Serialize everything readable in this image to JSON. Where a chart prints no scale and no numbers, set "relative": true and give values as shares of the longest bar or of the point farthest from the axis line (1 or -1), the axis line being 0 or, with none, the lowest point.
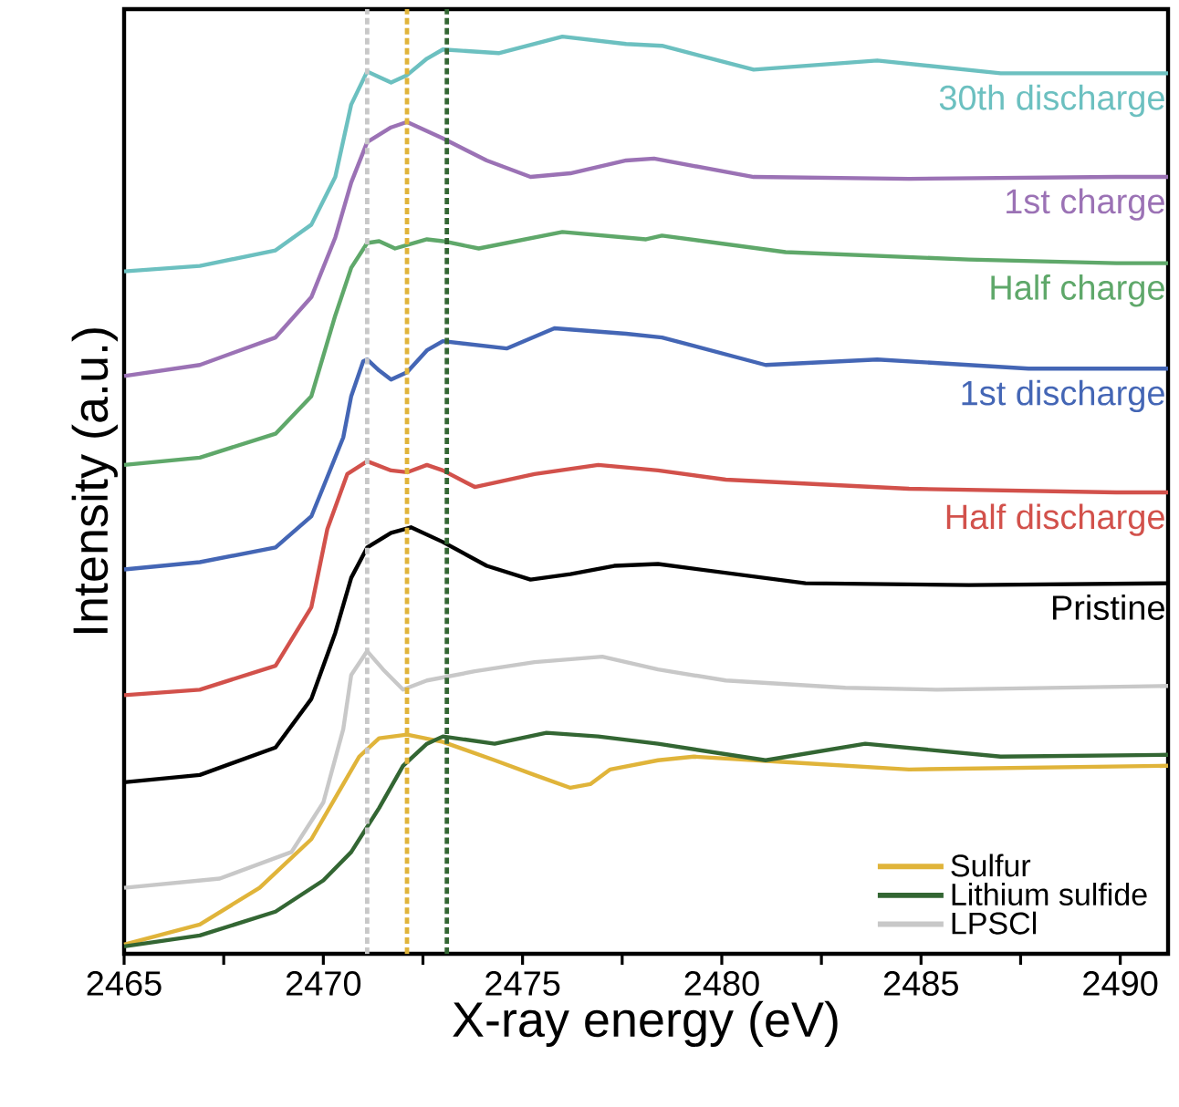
{
  "chart_data": {
    "type": "line",
    "relative": true,
    "xlabel": "X-ray energy (eV)",
    "ylabel": "Intensity (a.u.)",
    "xlim": [
      2465,
      2491.2
    ],
    "xticks": [
      2465,
      {
        "value": 2467.5,
        "label": null
      },
      2470,
      {
        "value": 2472.5,
        "label": null
      },
      2475,
      {
        "value": 2477.5,
        "label": null
      },
      2480,
      {
        "value": 2482.5,
        "label": null
      },
      2485,
      {
        "value": 2487.5,
        "label": null
      },
      2490
    ],
    "legend": "bottom right",
    "marker": "none",
    "line_style": "solid",
    "series": [
      {
        "color": "#6cc0c0",
        "x": [
          2465,
          2466.9,
          2468.8,
          2469.7,
          2470.3,
          2470.7,
          2471.1,
          2471.4,
          2471.7,
          2472.1,
          2472.6,
          2473.0,
          2474.4,
          2476.0,
          2477.6,
          2478.5,
          2480.8,
          2483.9,
          2487.0,
          2489.9,
          2491.2
        ],
        "values": [
          0.744,
          0.75,
          0.767,
          0.795,
          0.847,
          0.926,
          0.962,
          0.956,
          0.95,
          0.958,
          0.976,
          0.986,
          0.982,
          1.0,
          0.992,
          0.99,
          0.964,
          0.974,
          0.96,
          0.96,
          0.96
        ]
      },
      {
        "color": "#9b72b5",
        "x": [
          2465,
          2466.9,
          2468.8,
          2469.7,
          2470.3,
          2470.7,
          2471.1,
          2471.7,
          2472.1,
          2473.0,
          2474.1,
          2475.2,
          2476.2,
          2477.6,
          2478.3,
          2480.8,
          2484.7,
          2489.9,
          2491.2
        ],
        "values": [
          0.63,
          0.642,
          0.672,
          0.716,
          0.781,
          0.841,
          0.885,
          0.901,
          0.907,
          0.889,
          0.865,
          0.847,
          0.851,
          0.865,
          0.867,
          0.847,
          0.845,
          0.847,
          0.847
        ]
      },
      {
        "color": "#5fa86a",
        "x": [
          2465,
          2466.9,
          2468.8,
          2469.7,
          2470.3,
          2470.7,
          2471.1,
          2471.4,
          2471.8,
          2472.6,
          2473.0,
          2473.9,
          2476.0,
          2478.1,
          2478.5,
          2481.6,
          2486.2,
          2489.9,
          2491.2
        ],
        "values": [
          0.533,
          0.541,
          0.567,
          0.608,
          0.696,
          0.748,
          0.775,
          0.777,
          0.769,
          0.779,
          0.777,
          0.769,
          0.787,
          0.779,
          0.783,
          0.765,
          0.757,
          0.753,
          0.753
        ]
      },
      {
        "color": "#4466b5",
        "x": [
          2465,
          2466.9,
          2468.8,
          2469.7,
          2470.0,
          2470.5,
          2470.7,
          2471.0,
          2471.1,
          2471.4,
          2471.7,
          2472.1,
          2472.6,
          2473.0,
          2474.6,
          2475.8,
          2477.6,
          2478.5,
          2481.1,
          2483.9,
          2487.7,
          2491.2
        ],
        "values": [
          0.419,
          0.427,
          0.443,
          0.477,
          0.509,
          0.563,
          0.608,
          0.646,
          0.648,
          0.636,
          0.626,
          0.634,
          0.658,
          0.668,
          0.66,
          0.682,
          0.676,
          0.672,
          0.642,
          0.648,
          0.638,
          0.638
        ]
      },
      {
        "color": "#d2514b",
        "x": [
          2465,
          2466.9,
          2468.8,
          2469.7,
          2470.1,
          2470.6,
          2471.1,
          2471.7,
          2472.1,
          2472.6,
          2473.0,
          2473.8,
          2475.3,
          2476.9,
          2478.4,
          2480.1,
          2484.7,
          2489.9,
          2491.2
        ],
        "values": [
          0.282,
          0.288,
          0.314,
          0.378,
          0.463,
          0.523,
          0.537,
          0.527,
          0.525,
          0.533,
          0.527,
          0.509,
          0.523,
          0.533,
          0.527,
          0.517,
          0.507,
          0.503,
          0.503
        ]
      },
      {
        "color": "#000000",
        "x": [
          2465,
          2466.9,
          2468.8,
          2469.7,
          2470.3,
          2470.7,
          2471.1,
          2471.7,
          2472.2,
          2473.0,
          2474.1,
          2475.2,
          2476.2,
          2477.3,
          2478.4,
          2482.1,
          2486.2,
          2491.2
        ],
        "values": [
          0.187,
          0.195,
          0.225,
          0.278,
          0.35,
          0.41,
          0.443,
          0.459,
          0.465,
          0.449,
          0.423,
          0.408,
          0.414,
          0.423,
          0.425,
          0.404,
          0.402,
          0.404
        ]
      },
      {
        "name": "Sulfur",
        "color": "#e0b43a",
        "x": [
          2465,
          2466.9,
          2468.4,
          2469.7,
          2470.5,
          2470.9,
          2471.4,
          2472.1,
          2473.0,
          2474.3,
          2475.3,
          2476.2,
          2476.7,
          2477.2,
          2478.4,
          2479.3,
          2481.6,
          2484.7,
          2491.2
        ],
        "values": [
          0.01,
          0.032,
          0.072,
          0.125,
          0.185,
          0.215,
          0.235,
          0.239,
          0.231,
          0.211,
          0.195,
          0.181,
          0.185,
          0.201,
          0.211,
          0.215,
          0.209,
          0.201,
          0.205
        ]
      },
      {
        "name": "Lithium sulfide",
        "color": "#336633",
        "x": [
          2465,
          2466.9,
          2468.8,
          2470.0,
          2470.7,
          2471.4,
          2472.0,
          2472.6,
          2473.0,
          2474.3,
          2475.6,
          2476.9,
          2478.4,
          2481.1,
          2483.6,
          2487.0,
          2491.2
        ],
        "values": [
          0.008,
          0.02,
          0.046,
          0.08,
          0.111,
          0.159,
          0.205,
          0.229,
          0.237,
          0.229,
          0.241,
          0.237,
          0.229,
          0.211,
          0.229,
          0.215,
          0.217
        ]
      },
      {
        "name": "LPSCl",
        "color": "#c8c8c8",
        "x": [
          2465,
          2467.4,
          2469.2,
          2470.0,
          2470.5,
          2470.7,
          2471.1,
          2471.5,
          2472.0,
          2472.6,
          2473.8,
          2475.3,
          2477.0,
          2478.4,
          2480.1,
          2483.1,
          2485.4,
          2491.2
        ],
        "values": [
          0.072,
          0.082,
          0.111,
          0.165,
          0.245,
          0.304,
          0.33,
          0.31,
          0.288,
          0.298,
          0.308,
          0.318,
          0.324,
          0.31,
          0.298,
          0.29,
          0.288,
          0.292
        ]
      }
    ],
    "ref_lines": [
      {
        "axis": "x",
        "value": 2471.1,
        "color": "#c8c8c8",
        "line_style": "dashed"
      },
      {
        "axis": "x",
        "value": 2472.1,
        "color": "#e0b43a",
        "line_style": "dashed"
      },
      {
        "axis": "x",
        "value": 2473.1,
        "color": "#336633",
        "line_style": "dashed"
      }
    ],
    "annotations": [
      "30th discharge",
      "1st charge",
      "Half charge",
      "1st discharge",
      "Half discharge",
      "Pristine"
    ]
  }
}
